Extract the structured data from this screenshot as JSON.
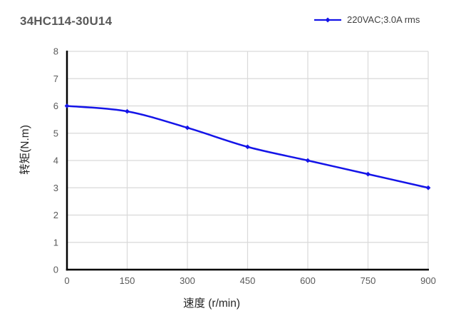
{
  "title": "34HC114-30U14",
  "legend": {
    "label": "220VAC;3.0A rms"
  },
  "chart_data": {
    "type": "line",
    "title": "34HC114-30U14",
    "xlabel": "速度 (r/min)",
    "ylabel": "转矩(N.m)",
    "x": [
      0,
      150,
      300,
      450,
      600,
      750,
      900
    ],
    "series": [
      {
        "name": "220VAC;3.0A rms",
        "color": "#1414e8",
        "marker": "diamond",
        "values": [
          6.0,
          5.8,
          5.2,
          4.5,
          4.0,
          3.5,
          3.0
        ]
      }
    ],
    "xlim": [
      0,
      900
    ],
    "ylim": [
      0,
      8
    ],
    "x_ticks": [
      0,
      150,
      300,
      450,
      600,
      750,
      900
    ],
    "y_ticks": [
      0,
      1,
      2,
      3,
      4,
      5,
      6,
      7,
      8
    ],
    "grid": true,
    "legend_position": "top-right"
  },
  "colors": {
    "background": "#ffffff",
    "grid": "#d9d9d9",
    "axis": "#000000",
    "tick_label": "#595959",
    "title": "#595959",
    "axis_label": "#262626",
    "legend_label": "#404040",
    "series": "#1414e8"
  }
}
